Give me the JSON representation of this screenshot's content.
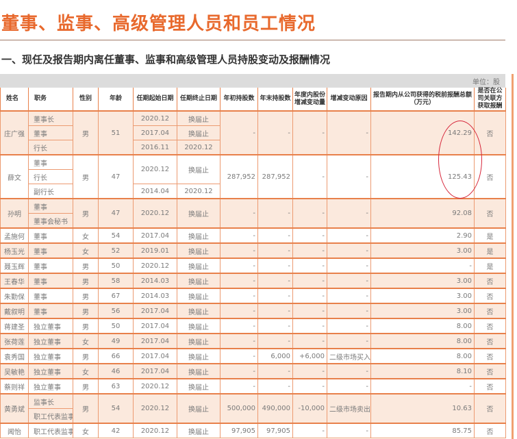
{
  "page": {
    "title": "董事、监事、高级管理人员和员工情况",
    "section_title": "一、现任及报告期内离任董事、监事和高级管理人员持股变动及报酬情况",
    "unit": "单位：股"
  },
  "colors": {
    "accent": "#e8692d",
    "row_shade": "#fbe9dd",
    "annotation_circle": "#d6263a"
  },
  "table": {
    "headers": [
      "姓名",
      "职务",
      "性别",
      "年龄",
      "任期起始日期",
      "任期终止日期",
      "年初持股数",
      "年末持股数",
      "年度内股份增减变动量",
      "增减变动原因",
      "报告期内从公司获得的税前报酬总额（万元）",
      "是否在公司关联方获取报酬"
    ],
    "people": [
      {
        "name": "庄广强",
        "gender": "男",
        "age": "51",
        "start_shares": "-",
        "end_shares": "-",
        "change": "-",
        "reason": "-",
        "pay": "142.29",
        "related": "否",
        "terms": [
          {
            "start": "2020.12",
            "end": "换届止",
            "roles": [
              "董事长"
            ]
          },
          {
            "start": "2017.04",
            "end": "换届止",
            "roles": [
              "董事"
            ]
          },
          {
            "start": "2016.11",
            "end": "2020.12",
            "roles": [
              "行长"
            ]
          }
        ]
      },
      {
        "name": "薛文",
        "gender": "男",
        "age": "47",
        "start_shares": "287,952",
        "end_shares": "287,952",
        "change": "-",
        "reason": "-",
        "pay": "125.43",
        "related": "否",
        "terms": [
          {
            "start": "2020.12",
            "end": "换届止",
            "roles": [
              "董事",
              "行长"
            ]
          },
          {
            "start": "2014.04",
            "end": "2020.12",
            "roles": [
              "副行长"
            ]
          }
        ]
      },
      {
        "name": "孙明",
        "gender": "男",
        "age": "47",
        "start_shares": "-",
        "end_shares": "-",
        "change": "-",
        "reason": "-",
        "pay": "92.08",
        "related": "否",
        "terms": [
          {
            "start": "2020.12",
            "end": "换届止",
            "roles": [
              "董事",
              "董事会秘书"
            ]
          }
        ]
      },
      {
        "name": "孟施何",
        "gender": "女",
        "age": "54",
        "start_shares": "-",
        "end_shares": "-",
        "change": "-",
        "reason": "-",
        "pay": "2.90",
        "related": "是",
        "terms": [
          {
            "start": "2017.04",
            "end": "换届止",
            "roles": [
              "董事"
            ]
          }
        ]
      },
      {
        "name": "杨玉光",
        "gender": "女",
        "age": "52",
        "start_shares": "-",
        "end_shares": "-",
        "change": "-",
        "reason": "-",
        "pay": "3.00",
        "related": "是",
        "terms": [
          {
            "start": "2019.01",
            "end": "换届止",
            "roles": [
              "董事"
            ]
          }
        ]
      },
      {
        "name": "聂玉辉",
        "gender": "男",
        "age": "50",
        "start_shares": "-",
        "end_shares": "-",
        "change": "-",
        "reason": "-",
        "pay": "-",
        "related": "是",
        "terms": [
          {
            "start": "2020.12",
            "end": "换届止",
            "roles": [
              "董事"
            ]
          }
        ]
      },
      {
        "name": "王春华",
        "gender": "男",
        "age": "58",
        "start_shares": "-",
        "end_shares": "-",
        "change": "-",
        "reason": "-",
        "pay": "3.00",
        "related": "否",
        "terms": [
          {
            "start": "2014.03",
            "end": "换届止",
            "roles": [
              "董事"
            ]
          }
        ]
      },
      {
        "name": "朱勤保",
        "gender": "男",
        "age": "67",
        "start_shares": "-",
        "end_shares": "-",
        "change": "-",
        "reason": "-",
        "pay": "3.00",
        "related": "否",
        "terms": [
          {
            "start": "2014.03",
            "end": "换届止",
            "roles": [
              "董事"
            ]
          }
        ]
      },
      {
        "name": "戴叙明",
        "gender": "男",
        "age": "56",
        "start_shares": "-",
        "end_shares": "-",
        "change": "-",
        "reason": "-",
        "pay": "3.00",
        "related": "否",
        "terms": [
          {
            "start": "2017.04",
            "end": "换届止",
            "roles": [
              "董事"
            ]
          }
        ]
      },
      {
        "name": "蒋建圣",
        "gender": "男",
        "age": "50",
        "start_shares": "-",
        "end_shares": "-",
        "change": "-",
        "reason": "-",
        "pay": "8.00",
        "related": "否",
        "terms": [
          {
            "start": "2017.04",
            "end": "换届止",
            "roles": [
              "独立董事"
            ]
          }
        ]
      },
      {
        "name": "张荷莲",
        "gender": "女",
        "age": "49",
        "start_shares": "-",
        "end_shares": "-",
        "change": "-",
        "reason": "-",
        "pay": "8.00",
        "related": "否",
        "terms": [
          {
            "start": "2017.04",
            "end": "换届止",
            "roles": [
              "独立董事"
            ]
          }
        ]
      },
      {
        "name": "袁秀国",
        "gender": "男",
        "age": "66",
        "start_shares": "-",
        "end_shares": "6,000",
        "change": "+6,000",
        "reason": "二级市场买入",
        "pay": "8.00",
        "related": "否",
        "terms": [
          {
            "start": "2017.04",
            "end": "换届止",
            "roles": [
              "独立董事"
            ]
          }
        ]
      },
      {
        "name": "吴敏艳",
        "gender": "女",
        "age": "46",
        "start_shares": "-",
        "end_shares": "-",
        "change": "-",
        "reason": "-",
        "pay": "8.10",
        "related": "否",
        "terms": [
          {
            "start": "2017.04",
            "end": "换届止",
            "roles": [
              "独立董事"
            ]
          }
        ]
      },
      {
        "name": "蔡则祥",
        "gender": "男",
        "age": "63",
        "start_shares": "-",
        "end_shares": "-",
        "change": "-",
        "reason": "-",
        "pay": "-",
        "related": "否",
        "terms": [
          {
            "start": "2020.12",
            "end": "换届止",
            "roles": [
              "独立董事"
            ]
          }
        ]
      },
      {
        "name": "黄勇斌",
        "gender": "男",
        "age": "54",
        "start_shares": "500,000",
        "end_shares": "490,000",
        "change": "-10,000",
        "reason": "二级市场卖出",
        "pay": "10.63",
        "related": "否",
        "terms": [
          {
            "start": "2020.12",
            "end": "换届止",
            "roles": [
              "监事长",
              "职工代表监事"
            ]
          }
        ]
      },
      {
        "name": "闻怡",
        "gender": "女",
        "age": "42",
        "start_shares": "97,905",
        "end_shares": "97,905",
        "change": "-",
        "reason": "-",
        "pay": "85.75",
        "related": "否",
        "terms": [
          {
            "start": "2020.12",
            "end": "换届止",
            "roles": [
              "职工代表监事"
            ]
          }
        ]
      }
    ]
  }
}
